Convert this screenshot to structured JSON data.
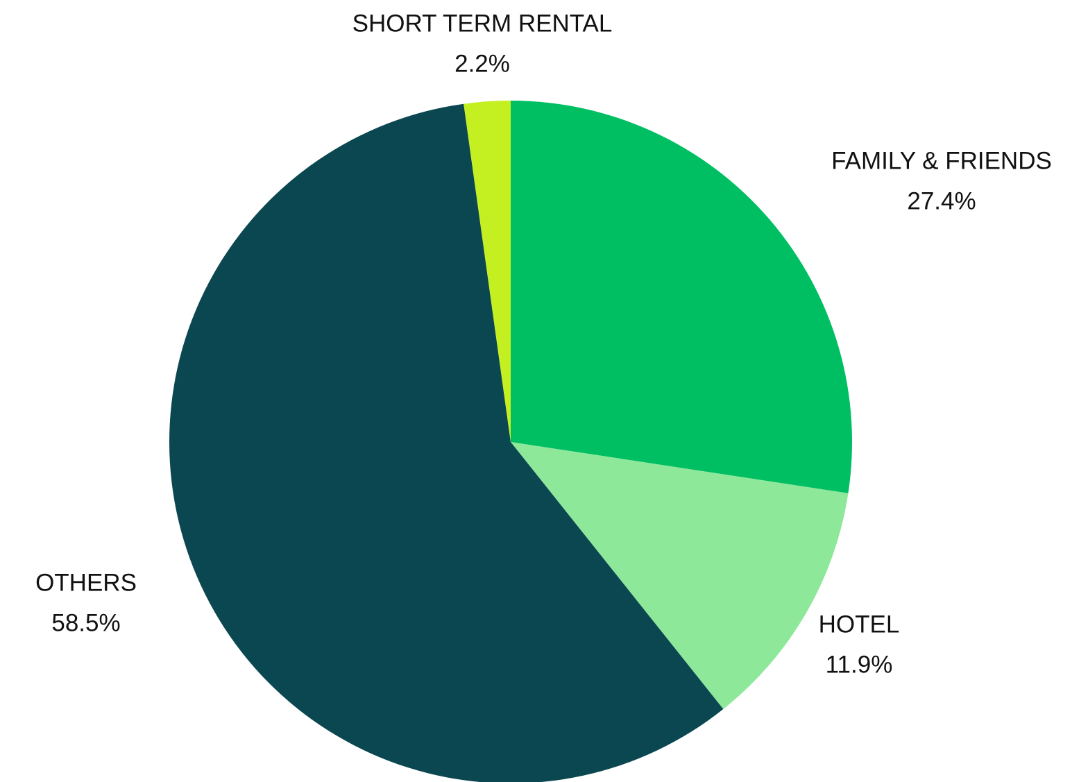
{
  "chart_data": {
    "type": "pie",
    "categories": [
      "FAMILY & FRIENDS",
      "HOTEL",
      "OTHERS",
      "SHORT TERM RENTAL"
    ],
    "values": [
      27.4,
      11.9,
      58.5,
      2.2
    ],
    "value_labels": [
      "27.4%",
      "11.9%",
      "58.5%",
      "2.2%"
    ],
    "colors": [
      "#00bf63",
      "#8ee89a",
      "#0b4751",
      "#c4f022"
    ]
  }
}
